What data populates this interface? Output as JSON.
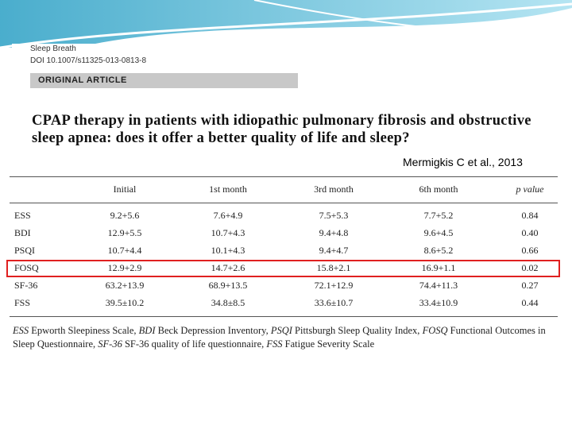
{
  "journal": "Sleep Breath",
  "doi": "DOI 10.1007/s11325-013-0813-8",
  "article_type": "ORIGINAL ARTICLE",
  "title": "CPAP therapy in patients with idiopathic pulmonary fibrosis and obstructive sleep apnea: does it offer a better quality of life and sleep?",
  "citation": "Mermigkis C et al., 2013",
  "table": {
    "columns": [
      "",
      "Initial",
      "1st month",
      "3rd month",
      "6th month",
      "p value"
    ],
    "rows": [
      [
        "ESS",
        "9.2+5.6",
        "7.6+4.9",
        "7.5+5.3",
        "7.7+5.2",
        "0.84"
      ],
      [
        "BDI",
        "12.9+5.5",
        "10.7+4.3",
        "9.4+4.8",
        "9.6+4.5",
        "0.40"
      ],
      [
        "PSQI",
        "10.7+4.4",
        "10.1+4.3",
        "9.4+4.7",
        "8.6+5.2",
        "0.66"
      ],
      [
        "FOSQ",
        "12.9+2.9",
        "14.7+2.6",
        "15.8+2.1",
        "16.9+1.1",
        "0.02"
      ],
      [
        "SF-36",
        "63.2+13.9",
        "68.9+13.5",
        "72.1+12.9",
        "74.4+11.3",
        "0.27"
      ],
      [
        "FSS",
        "39.5±10.2",
        "34.8±8.5",
        "33.6±10.7",
        "33.4±10.9",
        "0.44"
      ]
    ]
  },
  "footnote": [
    {
      "abbr": "ESS",
      "text": " Epworth Sleepiness Scale, "
    },
    {
      "abbr": "BDI",
      "text": " Beck Depression Inventory, "
    },
    {
      "abbr": "PSQI",
      "text": " Pittsburgh Sleep Quality Index, "
    },
    {
      "abbr": "FOSQ",
      "text": " Functional Outcomes in Sleep Questionnaire, "
    },
    {
      "abbr": "SF-36",
      "text": " SF-36 quality of life questionnaire, "
    },
    {
      "abbr": "FSS",
      "text": " Fatigue Severity Scale"
    }
  ]
}
